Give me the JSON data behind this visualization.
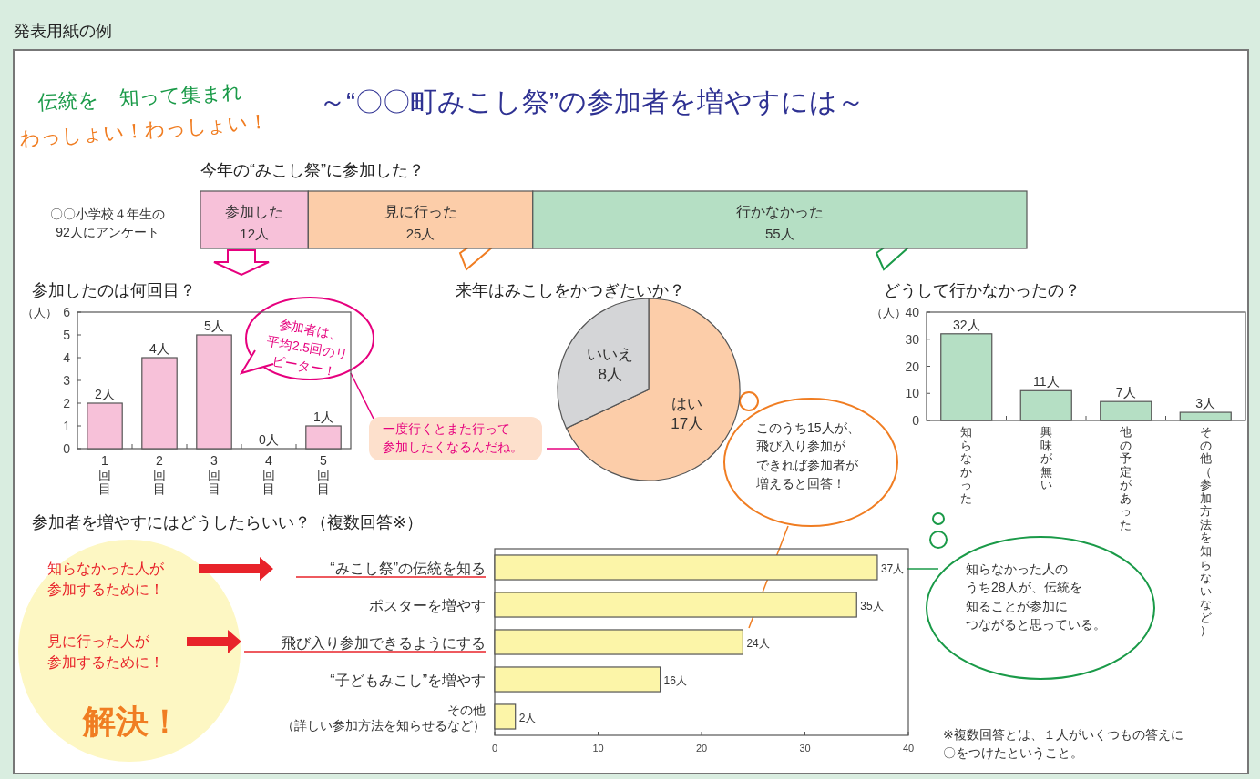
{
  "chart_data": [
    {
      "type": "other",
      "title": "～“〇〇町みこし祭”の参加者を増やすには～",
      "annotations": [
        "発表用紙の例",
        "伝統を　知って集まれ",
        "わっしょい！わっしょい！"
      ]
    },
    {
      "type": "bar",
      "orientation": "horizontal",
      "stacked": true,
      "title": "今年の“みこし祭”に参加した？",
      "categories": [
        null
      ],
      "series": [
        {
          "name": "参加した",
          "color": "#f7c1d9",
          "values": [
            12
          ],
          "value_labels": [
            "12人"
          ]
        },
        {
          "name": "見に行った",
          "color": "#fccda9",
          "values": [
            25
          ],
          "value_labels": [
            "25人"
          ]
        },
        {
          "name": "行かなかった",
          "color": "#b5dfc4",
          "values": [
            55
          ],
          "value_labels": [
            "55人"
          ]
        }
      ],
      "annotations": [
        "〇〇小学校４年生の92人にアンケート"
      ]
    },
    {
      "type": "bar",
      "title": "参加したのは何回目？",
      "ylabel": "（人）",
      "categories": [
        "1回目",
        "2回目",
        "3回目",
        "4回目",
        "5回目"
      ],
      "values": [
        2,
        4,
        5,
        0,
        1
      ],
      "color": "#f7c1d9",
      "value_labels": [
        "2人",
        "4人",
        "5人",
        "0人",
        "1人"
      ],
      "ylim": [
        0,
        6
      ],
      "yticks": [
        0,
        1,
        2,
        3,
        4,
        5,
        6
      ],
      "annotations": [
        "参加者は、平均2.5回のリピーター！",
        "一度行くとまた行って参加したくなるんだね。"
      ]
    },
    {
      "type": "pie",
      "title": "来年はみこしをかつぎたいか？",
      "categories": [
        "はい",
        "いいえ"
      ],
      "values": [
        17,
        8
      ],
      "colors": [
        "#fccda9",
        "#d4d5d7"
      ],
      "value_labels": [
        "17人",
        "8人"
      ],
      "annotations": [
        "このうち15人が、飛び入り参加ができれば参加者が増えると回答！"
      ]
    },
    {
      "type": "bar",
      "title": "どうして行かなかったの？",
      "ylabel": "（人）",
      "categories": [
        "知らなかった",
        "興味が無い",
        "他の予定があった",
        "その他（参加方法を知らないなど）"
      ],
      "values": [
        32,
        11,
        7,
        3
      ],
      "color": "#b5dfc4",
      "value_labels": [
        "32人",
        "11人",
        "7人",
        "3人"
      ],
      "ylim": [
        0,
        40
      ],
      "yticks": [
        0,
        10,
        20,
        30,
        40
      ]
    },
    {
      "type": "bar",
      "orientation": "horizontal",
      "title": "参加者を増やすにはどうしたらいい？（複数回答※）",
      "categories": [
        "“みこし祭”の伝統を知る",
        "ポスターを増やす",
        "飛び入り参加できるようにする",
        "“子どもみこし”を増やす",
        "その他（詳しい参加方法を知らせるなど）"
      ],
      "values": [
        37,
        35,
        24,
        16,
        2
      ],
      "color": "#fcf5a8",
      "value_labels": [
        "37人",
        "35人",
        "24人",
        "16人",
        "2人"
      ],
      "xlim": [
        0,
        40
      ],
      "xticks": [
        0,
        10,
        20,
        30,
        40
      ],
      "annotations": [
        "知らなかった人が参加するために！",
        "見に行った人が参加するために！",
        "解決！",
        "知らなかった人のうち28人が、伝統を知ることが参加につながると思っている。",
        "※複数回答とは、１人がいくつもの答えに〇をつけたということ。"
      ]
    }
  ]
}
